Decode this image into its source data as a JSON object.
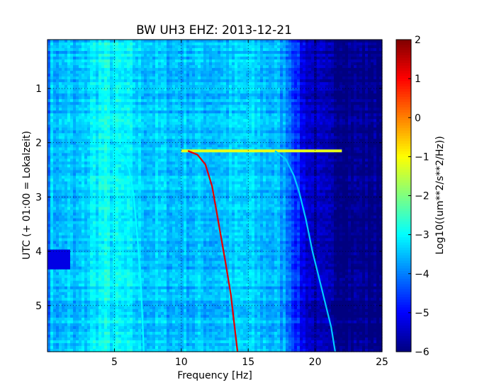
{
  "chart_data": {
    "type": "heatmap",
    "title": "BW UH3 EHZ: 2013-12-21",
    "xlabel": "Frequency [Hz]",
    "ylabel": "UTC (+ 01:00 = Lokalzeit)",
    "xlim": [
      0,
      25
    ],
    "ylim": [
      5.85,
      0.1
    ],
    "x_ticks": [
      5,
      10,
      15,
      20,
      25
    ],
    "y_ticks": [
      1,
      2,
      3,
      4,
      5
    ],
    "grid": true,
    "colormap": "jet",
    "colorbar": {
      "label": "Log10((um**2/s**2/Hz))",
      "range": [
        -6,
        2
      ],
      "ticks": [
        2,
        1,
        0,
        -1,
        -2,
        -3,
        -4,
        -5,
        -6
      ]
    },
    "background_profile": {
      "frequency": [
        0,
        0.3,
        1,
        1.5,
        2,
        3,
        4,
        5,
        6,
        7,
        9,
        11,
        13,
        15,
        16,
        17,
        17.8,
        18.3,
        19,
        20,
        21,
        23,
        25
      ],
      "level": [
        -4.1,
        -3.5,
        -3.6,
        -3.4,
        -3.7,
        -3.3,
        -3.0,
        -3.1,
        -3.2,
        -3.4,
        -3.5,
        -3.5,
        -3.5,
        -3.4,
        -3.5,
        -3.6,
        -3.8,
        -4.3,
        -5.1,
        -5.6,
        -5.8,
        -5.9,
        -6.0
      ]
    },
    "onset_band": {
      "time": 2.15,
      "frequency_range": [
        10,
        22
      ],
      "level": -1.2
    },
    "series": [
      {
        "color_level": -3.0,
        "points": [
          [
            5.0,
            2.15
          ],
          [
            5.7,
            2.25
          ],
          [
            6.1,
            2.5
          ],
          [
            6.4,
            2.9
          ],
          [
            6.6,
            3.4
          ],
          [
            6.8,
            4.0
          ],
          [
            7.0,
            4.7
          ],
          [
            7.2,
            5.85
          ]
        ]
      },
      {
        "color_level": 1.2,
        "points": [
          [
            10.5,
            2.15
          ],
          [
            11.2,
            2.22
          ],
          [
            11.8,
            2.4
          ],
          [
            12.3,
            2.8
          ],
          [
            12.8,
            3.5
          ],
          [
            13.3,
            4.2
          ],
          [
            13.7,
            4.8
          ],
          [
            14.2,
            5.85
          ]
        ]
      },
      {
        "color_level": -3.4,
        "points": [
          [
            17.0,
            2.15
          ],
          [
            17.8,
            2.3
          ],
          [
            18.4,
            2.6
          ],
          [
            18.8,
            2.9
          ],
          [
            19.3,
            3.4
          ],
          [
            19.8,
            4.0
          ],
          [
            20.4,
            4.6
          ],
          [
            21.2,
            5.4
          ],
          [
            21.5,
            5.85
          ]
        ]
      }
    ]
  }
}
